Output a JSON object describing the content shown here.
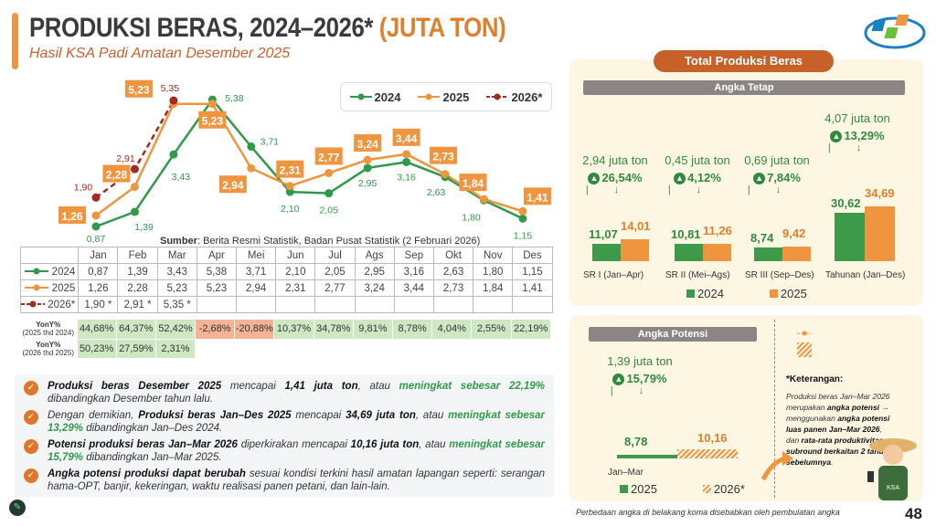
{
  "header": {
    "title": "PRODUKSI BERAS, 2024–2026*",
    "title_unit": "(JUTA TON)",
    "subtitle": "Hasil KSA Padi Amatan Desember 2025"
  },
  "colors": {
    "c2024": "#2f9a4a",
    "c2025": "#f0953f",
    "c2026": "#a32a1f",
    "accent": "#c8602a"
  },
  "chart_data": [
    {
      "type": "line",
      "months": [
        "Jan",
        "Feb",
        "Mar",
        "Apr",
        "Mei",
        "Jun",
        "Jul",
        "Ags",
        "Sep",
        "Okt",
        "Nov",
        "Des"
      ],
      "series": [
        {
          "name": "2024",
          "values": [
            0.87,
            1.39,
            3.43,
            5.38,
            3.71,
            2.1,
            2.05,
            2.95,
            3.16,
            2.63,
            1.8,
            1.15
          ],
          "labels": [
            "0,87",
            "1,39",
            "3,43",
            "5,38",
            "3,71",
            "2,10",
            "2,05",
            "2,95",
            "3,16",
            "2,63",
            "1,80",
            "1,15"
          ]
        },
        {
          "name": "2025",
          "values": [
            1.26,
            2.28,
            5.23,
            5.23,
            2.94,
            2.31,
            2.77,
            3.24,
            3.44,
            2.73,
            1.84,
            1.41
          ],
          "labels": [
            "1,26",
            "2,28",
            "5,23",
            "5,23",
            "2,94",
            "2,31",
            "2,77",
            "3,24",
            "3,44",
            "2,73",
            "1,84",
            "1,41"
          ]
        },
        {
          "name": "2026*",
          "values": [
            1.9,
            2.91,
            5.35
          ],
          "labels": [
            "1,90",
            "2,91",
            "5,35"
          ],
          "style": "dashed"
        }
      ],
      "legend": "top-right",
      "grid": false
    },
    {
      "type": "bar",
      "title": "Angka Tetap",
      "categories": [
        "SR I (Jan–Apr)",
        "SR II (Mei–Ags)",
        "SR III (Sep–Des)",
        "Tahunan (Jan–Des)"
      ],
      "series": [
        {
          "name": "2024",
          "values": [
            11.07,
            10.81,
            8.74,
            30.62
          ],
          "labels": [
            "11,07",
            "10,81",
            "8,74",
            "30,62"
          ]
        },
        {
          "name": "2025",
          "values": [
            14.01,
            11.26,
            9.42,
            34.69
          ],
          "labels": [
            "14,01",
            "11,26",
            "9,42",
            "34,69"
          ]
        }
      ],
      "changes": [
        {
          "amount": "2,94 juta ton",
          "pct": "26,54%"
        },
        {
          "amount": "0,45 juta ton",
          "pct": "4,12%"
        },
        {
          "amount": "0,69 juta ton",
          "pct": "7,84%"
        },
        {
          "amount": "4,07 juta ton",
          "pct": "13,29%"
        }
      ]
    },
    {
      "type": "bar",
      "title": "Angka Potensi",
      "categories": [
        "Jan–Mar"
      ],
      "series": [
        {
          "name": "2025",
          "values": [
            8.78
          ],
          "labels": [
            "8,78"
          ]
        },
        {
          "name": "2026*",
          "values": [
            10.16
          ],
          "labels": [
            "10,16"
          ]
        }
      ],
      "changes": [
        {
          "amount": "1,39 juta ton",
          "pct": "15,79%"
        }
      ]
    }
  ],
  "source": {
    "label": "Sumber",
    "text": ": Berita Resmi Statistik, Badan Pusat Statistik (2 Februari 2026)"
  },
  "table": {
    "rows": [
      {
        "name": "2024",
        "cells": [
          "0,87",
          "1,39",
          "3,43",
          "5,38",
          "3,71",
          "2,10",
          "2,05",
          "2,95",
          "3,16",
          "2,63",
          "1,80",
          "1,15"
        ]
      },
      {
        "name": "2025",
        "cells": [
          "1,26",
          "2,28",
          "5,23",
          "5,23",
          "2,94",
          "2,31",
          "2,77",
          "3,24",
          "3,44",
          "2,73",
          "1,84",
          "1,41"
        ]
      },
      {
        "name": "2026*",
        "cells": [
          "1,90 *",
          "2,91 *",
          "5,35 *",
          "",
          "",
          "",
          "",
          "",
          "",
          "",
          "",
          ""
        ]
      }
    ]
  },
  "yoy": [
    {
      "label": "YonY%",
      "sub": "(2025 thd 2024)",
      "cells": [
        "44,68%",
        "64,37%",
        "52,42%",
        "-2,68%",
        "-20,88%",
        "10,37%",
        "34,78%",
        "9,81%",
        "8,78%",
        "4,04%",
        "2,55%",
        "22,19%"
      ]
    },
    {
      "label": "YonY%",
      "sub": "(2026 thd 2025)",
      "cells": [
        "50,23%",
        "27,59%",
        "2,31%"
      ]
    }
  ],
  "bullets": [
    "<b>Produksi beras Desember 2025</b> mencapai <b>1,41 juta ton</b>, atau <span class='gr'>meningkat sebesar 22,19%</span> dibandingkan Desember tahun lalu.",
    "Dengan demikian, <b>Produksi beras Jan–Des 2025</b> mencapai <b>34,69 juta ton</b>, atau <span class='gr'>meningkat sebesar 13,29%</span> dibandingkan Jan–Des 2024.",
    "<b>Potensi produksi beras Jan–Mar 2026</b> diperkirakan mencapai <b>10,16 juta ton</b>, atau <span class='gr'>meningkat sebesar 15,79%</span> dibandingkan Jan–Mar 2025.",
    "<b>Angka potensi produksi dapat berubah</b> sesuai kondisi terkini hasil amatan lapangan seperti: serangan hama-OPT, banjir, kekeringan, waktu realisasi panen petani, dan lain-lain."
  ],
  "panel": {
    "title": "Total Produksi Beras",
    "tetap": "Angka Tetap",
    "potensi": "Angka Potensi"
  },
  "note": {
    "title": "*Keterangan:",
    "text": "Produksi beras Jan–Mar 2026 merupakan <b>angka potensi</b> → menggunakan <b>angka potensi luas panen Jan–Mar 2026</b>, dan <b>rata-rata produktivitas subround berkaitan 2 tahun sebelumnya</b>.",
    "badge": "KSA"
  },
  "footer": "Perbedaan angka di belakang koma disebabkan oleh pembulatan angka",
  "page_number": "48"
}
